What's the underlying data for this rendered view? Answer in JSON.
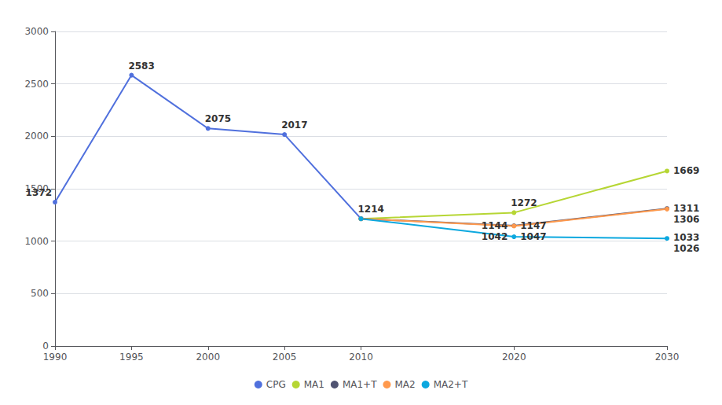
{
  "chart_data": {
    "type": "line",
    "series": [
      {
        "name": "CPG",
        "x": [
          1990,
          1995,
          2000,
          2005,
          2010
        ],
        "values": [
          1372,
          2583,
          2075,
          2017,
          1214
        ]
      },
      {
        "name": "MA1",
        "x": [
          2010,
          2020,
          2030
        ],
        "values": [
          1214,
          1272,
          1669
        ]
      },
      {
        "name": "MA1+T",
        "x": [
          2010,
          2020,
          2030
        ],
        "values": [
          1214,
          1147,
          1311
        ]
      },
      {
        "name": "MA2",
        "x": [
          2010,
          2020,
          2030
        ],
        "values": [
          1214,
          1144,
          1306
        ]
      },
      {
        "name": "MA2+T",
        "x": [
          2010,
          2020,
          2030
        ],
        "values": [
          1214,
          1042,
          1026
        ]
      }
    ],
    "marker": "circle",
    "xlim": [
      1990,
      2030
    ],
    "xticks": [
      1990,
      1995,
      2000,
      2005,
      2010,
      2020,
      2030
    ],
    "ylim": [
      0,
      3000
    ],
    "yticks": [
      0,
      500,
      1000,
      1500,
      2000,
      2500,
      3000
    ],
    "grid": true,
    "legend": "bottom",
    "annotations": [
      {
        "text": "1372",
        "x": 1990,
        "y": 1372
      },
      {
        "text": "2583",
        "x": 1995,
        "y": 2583
      },
      {
        "text": "2075",
        "x": 2000,
        "y": 2075
      },
      {
        "text": "2017",
        "x": 2005,
        "y": 2017
      },
      {
        "text": "1214",
        "x": 2010,
        "y": 1214
      },
      {
        "text": "1669",
        "x": 2030,
        "y": 1669
      },
      {
        "text": "1311",
        "x": 2030,
        "y": 1311
      },
      {
        "text": "1306",
        "x": 2030,
        "y": 1306
      },
      {
        "text": "1033",
        "x": 2030,
        "y": 1033
      },
      {
        "text": "1026",
        "x": 2030,
        "y": 1026
      },
      {
        "text": "1272",
        "x": 2020,
        "y": 1272
      },
      {
        "text": "1147",
        "x": 2020,
        "y": 1147
      },
      {
        "text": "1144",
        "x": 2020,
        "y": 1144
      },
      {
        "text": "1047",
        "x": 2020,
        "y": 1047
      },
      {
        "text": "1042",
        "x": 2020,
        "y": 1042
      }
    ]
  }
}
